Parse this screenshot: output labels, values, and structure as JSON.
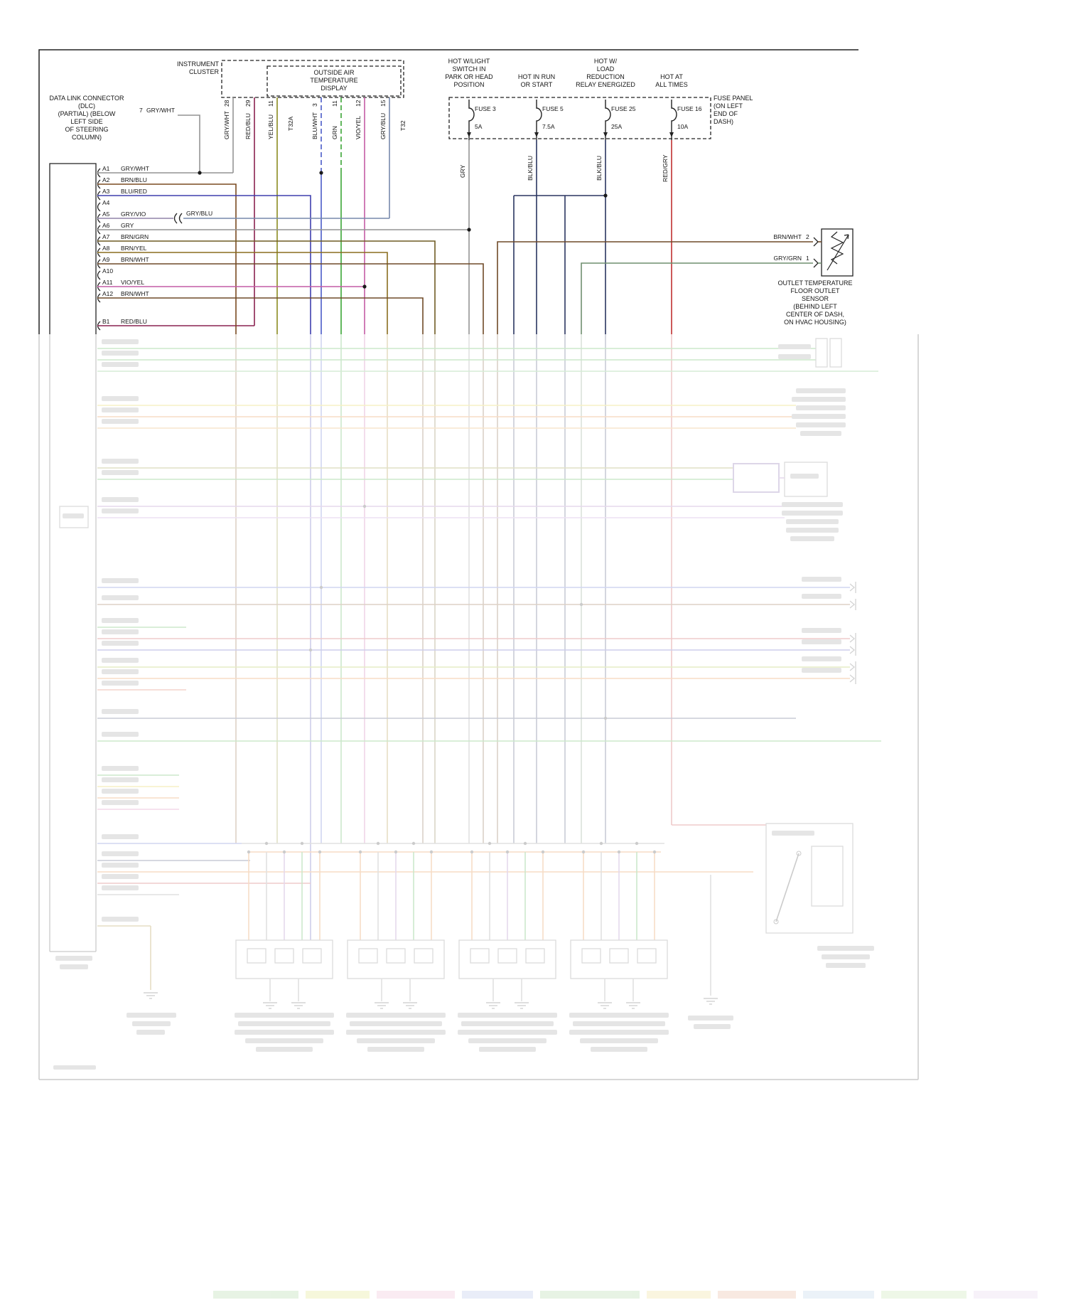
{
  "colors": {
    "gry_wht": "#949494",
    "brn_blu": "#7a4a21",
    "blu_red": "#3f3fae",
    "gry_vio": "#9083a8",
    "gry": "#949494",
    "brn_grn": "#6f5b23",
    "brn_yel": "#8a6d1f",
    "brn_wht": "#6f4a28",
    "vio_yel": "#c45ba5",
    "red_blu": "#8a2250",
    "yel_blu": "#8a8a20",
    "blu_wht": "#4a5cc8",
    "grn": "#3aa535",
    "gry_blu": "#7789ab",
    "blk_blu": "#2a3560",
    "red_gry": "#c03030",
    "gry_grn": "#6f8f6f"
  },
  "dlc": {
    "label_lines": [
      "DATA LINK CONNECTOR",
      "(DLC)",
      "(PARTIAL) (BELOW",
      "LEFT SIDE",
      "OF STEERING",
      "COLUMN)"
    ],
    "pin7_num": "7",
    "pin7_wire": "GRY/WHT",
    "a5_alt_wire": "GRY/BLU",
    "pins": [
      {
        "pin": "A1",
        "wire": "GRY/WHT"
      },
      {
        "pin": "A2",
        "wire": "BRN/BLU"
      },
      {
        "pin": "A3",
        "wire": "BLU/RED"
      },
      {
        "pin": "A4",
        "wire": ""
      },
      {
        "pin": "A5",
        "wire": "GRY/VIO"
      },
      {
        "pin": "A6",
        "wire": "GRY"
      },
      {
        "pin": "A7",
        "wire": "BRN/GRN"
      },
      {
        "pin": "A8",
        "wire": "BRN/YEL"
      },
      {
        "pin": "A9",
        "wire": "BRN/WHT"
      },
      {
        "pin": "A10",
        "wire": ""
      },
      {
        "pin": "A11",
        "wire": "VIO/YEL"
      },
      {
        "pin": "A12",
        "wire": "BRN/WHT"
      },
      {
        "pin": "B1",
        "wire": "RED/BLU"
      }
    ]
  },
  "cluster": {
    "label_lines": [
      "INSTRUMENT",
      "CLUSTER"
    ],
    "display_label_lines": [
      "OUTSIDE AIR",
      "TEMPERATURE",
      "DISPLAY"
    ],
    "stubs": [
      {
        "label": "GRY/WHT",
        "num": "28"
      },
      {
        "label": "RED/BLU",
        "num": "29"
      },
      {
        "label": "YEL/BLU",
        "num": "11"
      },
      {
        "label": "T32A",
        "num": ""
      },
      {
        "label": "BLU/WHT",
        "num": "3"
      },
      {
        "label": "GRN",
        "num": "11"
      },
      {
        "label": "VIO/YEL",
        "num": "12"
      },
      {
        "label": "GRY/BLU",
        "num": "15"
      },
      {
        "label": "T32",
        "num": ""
      }
    ]
  },
  "fuse_panel": {
    "headers": [
      {
        "lines": [
          "HOT W/LIGHT",
          "SWITCH IN",
          "PARK OR HEAD",
          "POSITION"
        ]
      },
      {
        "lines": [
          "HOT IN RUN",
          "OR START"
        ]
      },
      {
        "lines": [
          "HOT W/",
          "LOAD",
          "REDUCTION",
          "RELAY ENERGIZED"
        ]
      },
      {
        "lines": [
          "HOT AT",
          "ALL TIMES"
        ]
      }
    ],
    "fuses": [
      {
        "name": "FUSE 3",
        "amp": "5A",
        "wire": "GRY"
      },
      {
        "name": "FUSE 5",
        "amp": "7.5A",
        "wire": "BLK/BLU"
      },
      {
        "name": "FUSE 25",
        "amp": "25A",
        "wire": "BLK/BLU"
      },
      {
        "name": "FUSE 16",
        "amp": "10A",
        "wire": "RED/GRY"
      }
    ],
    "label_lines": [
      "FUSE PANEL",
      "(ON LEFT",
      "END OF",
      "DASH)"
    ]
  },
  "sensor": {
    "pin2_label": "BRN/WHT",
    "pin2_num": "2",
    "pin1_label": "GRY/GRN",
    "pin1_num": "1",
    "label_lines": [
      "OUTLET TEMPERATURE",
      "FLOOR OUTLET",
      "SENSOR",
      "(BEHIND LEFT",
      "CENTER OF DASH,",
      "ON HVAC HOUSING)"
    ]
  }
}
